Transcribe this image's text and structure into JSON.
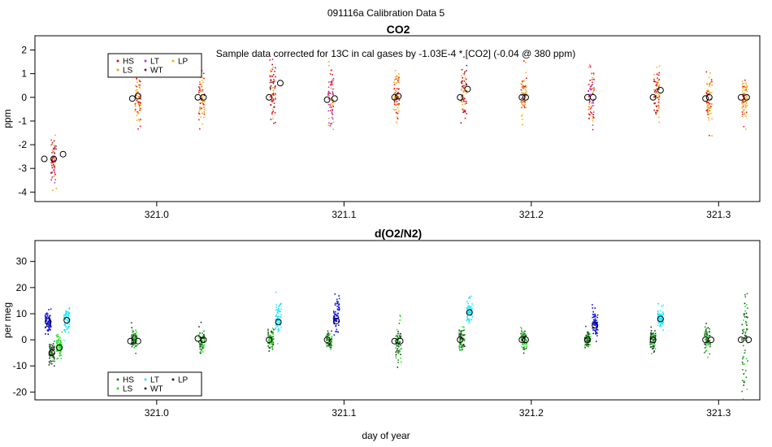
{
  "figure": {
    "title": "091116a   Calibration Data 5",
    "xlabel": "day of year"
  },
  "chart_data": [
    {
      "type": "scatter",
      "title": "CO2",
      "ylabel": "ppm",
      "annotation": "Sample data corrected for 13C in cal gases by -1.03E-4 * [CO2] (-0.04 @ 380 ppm)",
      "xlim": [
        320.935,
        321.322
      ],
      "ylim": [
        -4.4,
        2.6
      ],
      "xticks": [
        321.0,
        321.1,
        321.2,
        321.3
      ],
      "xtick_labels": [
        "321.0",
        "321.1",
        "321.2",
        "321.3"
      ],
      "yticks": [
        -4,
        -3,
        -2,
        -1,
        0,
        1,
        2
      ],
      "ytick_labels": [
        "-4",
        "-3",
        "-2",
        "-1",
        "0",
        "1",
        "2"
      ],
      "legend": {
        "position": "top-left",
        "entries": [
          {
            "name": "HS",
            "color": "#e8101c"
          },
          {
            "name": "LS",
            "color": "#f5a21a"
          },
          {
            "name": "LT",
            "color": "#a23fe0"
          },
          {
            "name": "WT",
            "color": "#8c1a2a"
          },
          {
            "name": "LP",
            "color": "#ffb400"
          }
        ]
      },
      "clusters": [
        {
          "x": 320.945,
          "mean": -2.6,
          "sd": 0.55,
          "colors": [
            "#a23fe0",
            "#f5a21a",
            "#8c1a2a",
            "#e8101c"
          ]
        },
        {
          "x": 320.99,
          "mean": 0.0,
          "sd": 0.55,
          "colors": [
            "#f5a21a",
            "#ffb400",
            "#e8101c"
          ]
        },
        {
          "x": 321.024,
          "mean": 0.0,
          "sd": 0.55,
          "colors": [
            "#e8101c",
            "#f5a21a",
            "#ffb400"
          ]
        },
        {
          "x": 321.062,
          "mean": 0.3,
          "sd": 0.65,
          "colors": [
            "#f5a21a",
            "#e8101c",
            "#8c1a2a"
          ]
        },
        {
          "x": 321.093,
          "mean": -0.1,
          "sd": 0.6,
          "colors": [
            "#e8101c",
            "#a23fe0",
            "#f5a21a"
          ]
        },
        {
          "x": 321.128,
          "mean": 0.0,
          "sd": 0.55,
          "colors": [
            "#f5a21a",
            "#ffb400",
            "#e8101c"
          ]
        },
        {
          "x": 321.164,
          "mean": 0.2,
          "sd": 0.6,
          "colors": [
            "#e8101c",
            "#f5a21a",
            "#8c1a2a"
          ]
        },
        {
          "x": 321.196,
          "mean": 0.0,
          "sd": 0.55,
          "colors": [
            "#f5a21a",
            "#e8101c",
            "#ffb400"
          ]
        },
        {
          "x": 321.232,
          "mean": 0.0,
          "sd": 0.65,
          "colors": [
            "#e8101c",
            "#a23fe0",
            "#f5a21a"
          ]
        },
        {
          "x": 321.267,
          "mean": 0.2,
          "sd": 0.6,
          "colors": [
            "#ffb400",
            "#f5a21a",
            "#8c1a2a",
            "#e8101c"
          ]
        },
        {
          "x": 321.295,
          "mean": -0.1,
          "sd": 0.55,
          "colors": [
            "#e8101c",
            "#f5a21a",
            "#ffb400"
          ]
        },
        {
          "x": 321.314,
          "mean": 0.0,
          "sd": 0.55,
          "colors": [
            "#ffb400",
            "#e8101c",
            "#f5a21a"
          ]
        }
      ],
      "means": [
        {
          "x": 320.94,
          "y": -2.6
        },
        {
          "x": 320.945,
          "y": -2.6
        },
        {
          "x": 320.95,
          "y": -2.4
        },
        {
          "x": 320.987,
          "y": -0.05
        },
        {
          "x": 320.99,
          "y": 0.05
        },
        {
          "x": 321.022,
          "y": 0.0
        },
        {
          "x": 321.025,
          "y": 0.0
        },
        {
          "x": 321.06,
          "y": 0.0
        },
        {
          "x": 321.066,
          "y": 0.6
        },
        {
          "x": 321.091,
          "y": -0.1
        },
        {
          "x": 321.095,
          "y": -0.05
        },
        {
          "x": 321.127,
          "y": 0.0
        },
        {
          "x": 321.129,
          "y": 0.05
        },
        {
          "x": 321.162,
          "y": 0.0
        },
        {
          "x": 321.166,
          "y": 0.35
        },
        {
          "x": 321.195,
          "y": 0.0
        },
        {
          "x": 321.197,
          "y": 0.0
        },
        {
          "x": 321.23,
          "y": 0.0
        },
        {
          "x": 321.233,
          "y": 0.0
        },
        {
          "x": 321.265,
          "y": 0.0
        },
        {
          "x": 321.269,
          "y": 0.3
        },
        {
          "x": 321.293,
          "y": -0.05
        },
        {
          "x": 321.295,
          "y": 0.0
        },
        {
          "x": 321.312,
          "y": 0.0
        },
        {
          "x": 321.315,
          "y": 0.0
        }
      ]
    },
    {
      "type": "scatter",
      "title": "d(O2/N2)",
      "ylabel": "per meg",
      "xlim": [
        320.935,
        321.322
      ],
      "ylim": [
        -23,
        38
      ],
      "xticks": [
        321.0,
        321.1,
        321.2,
        321.3
      ],
      "xtick_labels": [
        "321.0",
        "321.1",
        "321.2",
        "321.3"
      ],
      "yticks": [
        -20,
        -10,
        0,
        10,
        20,
        30
      ],
      "ytick_labels": [
        "-20",
        "-10",
        "0",
        "10",
        "20",
        "30"
      ],
      "legend": {
        "position": "bottom-left",
        "entries": [
          {
            "name": "HS",
            "color": "#2f7a2f"
          },
          {
            "name": "LS",
            "color": "#22e022"
          },
          {
            "name": "LT",
            "color": "#20e8ff"
          },
          {
            "name": "WT",
            "color": "#1a3d1a"
          },
          {
            "name": "LP",
            "color": "#143214"
          }
        ]
      },
      "clusters": [
        {
          "x": 320.942,
          "mean": 7,
          "sd": 2.0,
          "colors": [
            "#0000cd",
            "#1010ff"
          ]
        },
        {
          "x": 320.944,
          "mean": -5,
          "sd": 2.0,
          "colors": [
            "#1a3d1a",
            "#2f7a2f"
          ]
        },
        {
          "x": 320.948,
          "mean": -3,
          "sd": 2.5,
          "colors": [
            "#22e022"
          ]
        },
        {
          "x": 320.952,
          "mean": 8,
          "sd": 2.5,
          "colors": [
            "#20e8ff"
          ]
        },
        {
          "x": 320.988,
          "mean": 0,
          "sd": 2.0,
          "colors": [
            "#22e022",
            "#1a3d1a",
            "#2f7a2f"
          ]
        },
        {
          "x": 321.024,
          "mean": 0,
          "sd": 2.0,
          "colors": [
            "#22e022",
            "#1a3d1a"
          ]
        },
        {
          "x": 321.061,
          "mean": 0,
          "sd": 2.0,
          "colors": [
            "#22e022",
            "#1a3d1a",
            "#2f7a2f"
          ]
        },
        {
          "x": 321.065,
          "mean": 8,
          "sd": 3.0,
          "colors": [
            "#20e8ff"
          ]
        },
        {
          "x": 321.092,
          "mean": 0,
          "sd": 2.0,
          "colors": [
            "#22e022",
            "#1a3d1a"
          ]
        },
        {
          "x": 321.096,
          "mean": 8,
          "sd": 3.5,
          "colors": [
            "#0000cd",
            "#1010ff"
          ]
        },
        {
          "x": 321.129,
          "mean": -1,
          "sd": 4.5,
          "colors": [
            "#22e022",
            "#1a3d1a",
            "#2f7a2f"
          ]
        },
        {
          "x": 321.163,
          "mean": 0,
          "sd": 2.0,
          "colors": [
            "#22e022",
            "#1a3d1a",
            "#2f7a2f"
          ]
        },
        {
          "x": 321.167,
          "mean": 11,
          "sd": 2.0,
          "colors": [
            "#20e8ff"
          ]
        },
        {
          "x": 321.196,
          "mean": 0,
          "sd": 2.0,
          "colors": [
            "#22e022",
            "#1a3d1a"
          ]
        },
        {
          "x": 321.23,
          "mean": 0,
          "sd": 2.0,
          "colors": [
            "#22e022",
            "#1a3d1a",
            "#2f7a2f"
          ]
        },
        {
          "x": 321.234,
          "mean": 6,
          "sd": 2.5,
          "colors": [
            "#0000cd",
            "#1010ff"
          ]
        },
        {
          "x": 321.265,
          "mean": 0,
          "sd": 2.0,
          "colors": [
            "#22e022",
            "#1a3d1a"
          ]
        },
        {
          "x": 321.269,
          "mean": 8,
          "sd": 2.0,
          "colors": [
            "#20e8ff"
          ]
        },
        {
          "x": 321.294,
          "mean": 0,
          "sd": 2.5,
          "colors": [
            "#22e022",
            "#1a3d1a",
            "#2f7a2f"
          ]
        },
        {
          "x": 321.314,
          "mean": 2,
          "sd": 10.0,
          "colors": [
            "#22e022",
            "#1a3d1a",
            "#2f7a2f"
          ]
        }
      ],
      "means": [
        {
          "x": 320.942,
          "y": 7
        },
        {
          "x": 320.944,
          "y": -5
        },
        {
          "x": 320.948,
          "y": -3
        },
        {
          "x": 320.952,
          "y": 7.5
        },
        {
          "x": 320.986,
          "y": -0.5
        },
        {
          "x": 320.99,
          "y": -0.5
        },
        {
          "x": 321.022,
          "y": 0.5
        },
        {
          "x": 321.025,
          "y": 0.0
        },
        {
          "x": 321.06,
          "y": 0.0
        },
        {
          "x": 321.065,
          "y": 6.8
        },
        {
          "x": 321.091,
          "y": 0.0
        },
        {
          "x": 321.096,
          "y": 7.2
        },
        {
          "x": 321.127,
          "y": -0.5
        },
        {
          "x": 321.13,
          "y": -0.5
        },
        {
          "x": 321.162,
          "y": 0.0
        },
        {
          "x": 321.167,
          "y": 10.5
        },
        {
          "x": 321.195,
          "y": 0.0
        },
        {
          "x": 321.197,
          "y": 0.0
        },
        {
          "x": 321.23,
          "y": 0.0
        },
        {
          "x": 321.234,
          "y": 5.5
        },
        {
          "x": 321.265,
          "y": 0.0
        },
        {
          "x": 321.269,
          "y": 8.0
        },
        {
          "x": 321.293,
          "y": 0.0
        },
        {
          "x": 321.296,
          "y": 0.0
        },
        {
          "x": 321.312,
          "y": 0.0
        },
        {
          "x": 321.316,
          "y": 0.0
        }
      ]
    }
  ]
}
